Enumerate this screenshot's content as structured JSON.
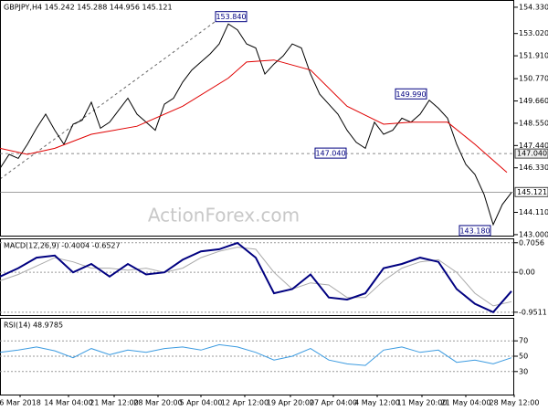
{
  "watermark": "ActionForex.com",
  "chart_data": [
    {
      "type": "line",
      "title": "GBPJPY,H4 145.242 145.288 144.956 145.121",
      "xlim": [
        0,
        56.3
      ],
      "ylim": [
        142.95,
        154.69
      ],
      "yticks": [
        {
          "value": 154.33,
          "label": "154.330"
        },
        {
          "value": 153.02,
          "label": "153.020"
        },
        {
          "value": 151.91,
          "label": "151.910"
        },
        {
          "value": 150.77,
          "label": "150.770"
        },
        {
          "value": 149.66,
          "label": "149.660"
        },
        {
          "value": 148.55,
          "label": "148.550"
        },
        {
          "value": 147.44,
          "label": "147.440"
        },
        {
          "value": 146.33,
          "label": "146.330"
        },
        {
          "value": 144.11,
          "label": "144.110"
        },
        {
          "value": 143.0,
          "label": "143.000"
        }
      ],
      "levels": [
        {
          "value": 147.04,
          "label": "147.040",
          "style": "dashed"
        },
        {
          "value": 145.121,
          "label": "145.121",
          "style": "solid"
        }
      ],
      "annotations": [
        {
          "label": "153.840",
          "value": 153.84,
          "x": 25.3
        },
        {
          "label": "149.990",
          "value": 149.99,
          "x": 45
        },
        {
          "label": "147.040",
          "value": 147.04,
          "x": 36.2
        },
        {
          "label": "143.180",
          "value": 143.18,
          "x": 52
        }
      ],
      "series": [
        {
          "color": "#000000",
          "x": [
            0,
            1,
            2,
            3,
            4,
            5,
            6,
            7,
            8,
            9,
            10,
            11,
            12,
            13,
            14,
            15,
            16,
            17,
            18,
            19,
            20,
            21,
            22,
            23,
            24,
            25,
            26,
            27,
            28,
            29,
            30,
            31,
            32,
            33,
            34,
            35,
            36,
            37,
            38,
            39,
            40,
            41,
            42,
            43,
            44,
            45,
            46,
            47,
            48,
            49,
            50,
            51,
            52,
            53,
            54,
            55,
            56
          ],
          "values": [
            146.3,
            147.0,
            146.8,
            147.5,
            148.3,
            149.0,
            148.2,
            147.5,
            148.5,
            148.7,
            149.6,
            148.3,
            148.6,
            149.2,
            149.8,
            149.0,
            148.6,
            148.2,
            149.5,
            149.8,
            150.6,
            151.2,
            151.6,
            152.0,
            152.5,
            153.5,
            153.2,
            152.5,
            152.3,
            151.0,
            151.5,
            151.9,
            152.5,
            152.3,
            151.0,
            150.0,
            149.5,
            149.0,
            148.2,
            147.6,
            147.3,
            148.6,
            148.0,
            148.2,
            148.8,
            148.6,
            149.0,
            149.7,
            149.3,
            148.8,
            147.5,
            146.5,
            146.0,
            145.0,
            143.5,
            144.5,
            145.1
          ]
        },
        {
          "color": "#e00000",
          "x": [
            0,
            3,
            6,
            10,
            15,
            20,
            25,
            27,
            30,
            34,
            38,
            42,
            45,
            49,
            52,
            55.5
          ],
          "values": [
            147.3,
            147.0,
            147.3,
            148.0,
            148.4,
            149.4,
            150.8,
            151.6,
            151.7,
            151.2,
            149.4,
            148.5,
            148.6,
            148.6,
            147.5,
            146.1
          ]
        }
      ]
    },
    {
      "type": "line",
      "title": "MACD(12,26,9) -0.4004 -0.6527",
      "xlim": [
        0,
        56.3
      ],
      "ylim": [
        -1.02,
        0.81
      ],
      "yticks": [
        {
          "value": 0.7056,
          "label": "0.7056"
        },
        {
          "value": 0,
          "label": "0.00"
        },
        {
          "value": -0.9511,
          "label": "-0.9511"
        }
      ],
      "series": [
        {
          "color": "#aaaaaa",
          "x": [
            0,
            2,
            4,
            6,
            8,
            10,
            12,
            14,
            16,
            18,
            20,
            22,
            24,
            26,
            28,
            30,
            32,
            34,
            36,
            38,
            40,
            42,
            44,
            46,
            48,
            50,
            52,
            54,
            56
          ],
          "values": [
            -0.2,
            -0.05,
            0.15,
            0.35,
            0.25,
            0.1,
            0.1,
            0.05,
            0.1,
            0.0,
            0.1,
            0.35,
            0.5,
            0.6,
            0.55,
            0.0,
            -0.4,
            -0.25,
            -0.3,
            -0.6,
            -0.6,
            -0.2,
            0.1,
            0.25,
            0.3,
            0.0,
            -0.5,
            -0.8,
            -0.7
          ]
        },
        {
          "color": "#000080",
          "x": [
            0,
            2,
            4,
            6,
            8,
            10,
            12,
            14,
            16,
            18,
            20,
            22,
            24,
            26,
            28,
            30,
            32,
            34,
            36,
            38,
            40,
            42,
            44,
            46,
            48,
            50,
            52,
            54,
            56
          ],
          "values": [
            -0.1,
            0.1,
            0.35,
            0.4,
            0.0,
            0.2,
            -0.1,
            0.2,
            -0.05,
            0.0,
            0.3,
            0.5,
            0.55,
            0.7,
            0.35,
            -0.5,
            -0.4,
            -0.05,
            -0.6,
            -0.65,
            -0.5,
            0.1,
            0.2,
            0.35,
            0.25,
            -0.4,
            -0.75,
            -0.95,
            -0.45
          ]
        }
      ]
    },
    {
      "type": "line",
      "title": "RSI(14) 48.9785",
      "xlim": [
        0,
        56.3
      ],
      "ylim": [
        0,
        100
      ],
      "yticks": [
        70,
        50,
        30
      ],
      "xticks": [
        {
          "value": 2.2,
          "label": "6 Mar 2018"
        },
        {
          "value": 7.5,
          "label": "14 Mar 04:00"
        },
        {
          "value": 12.5,
          "label": "21 Mar 12:00"
        },
        {
          "value": 17.3,
          "label": "28 Mar 20:00"
        },
        {
          "value": 22,
          "label": "5 Apr 04:00"
        },
        {
          "value": 26.8,
          "label": "12 Apr 12:00"
        },
        {
          "value": 31.8,
          "label": "19 Apr 20:00"
        },
        {
          "value": 36.5,
          "label": "27 Apr 04:00"
        },
        {
          "value": 41.3,
          "label": "4 May 12:00"
        },
        {
          "value": 46.2,
          "label": "11 May 20:00"
        },
        {
          "value": 51,
          "label": "21 May 04:00"
        },
        {
          "value": 56.3,
          "label": "28 May 12:00"
        }
      ],
      "series": [
        {
          "color": "#3a9ae0",
          "x": [
            0,
            2,
            4,
            6,
            8,
            10,
            12,
            14,
            16,
            18,
            20,
            22,
            24,
            26,
            28,
            30,
            32,
            34,
            36,
            38,
            40,
            42,
            44,
            46,
            48,
            50,
            52,
            54,
            56
          ],
          "values": [
            55,
            58,
            62,
            57,
            48,
            60,
            52,
            58,
            55,
            60,
            62,
            58,
            65,
            62,
            55,
            45,
            50,
            60,
            45,
            40,
            38,
            58,
            62,
            55,
            58,
            42,
            45,
            40,
            48
          ]
        }
      ]
    }
  ]
}
